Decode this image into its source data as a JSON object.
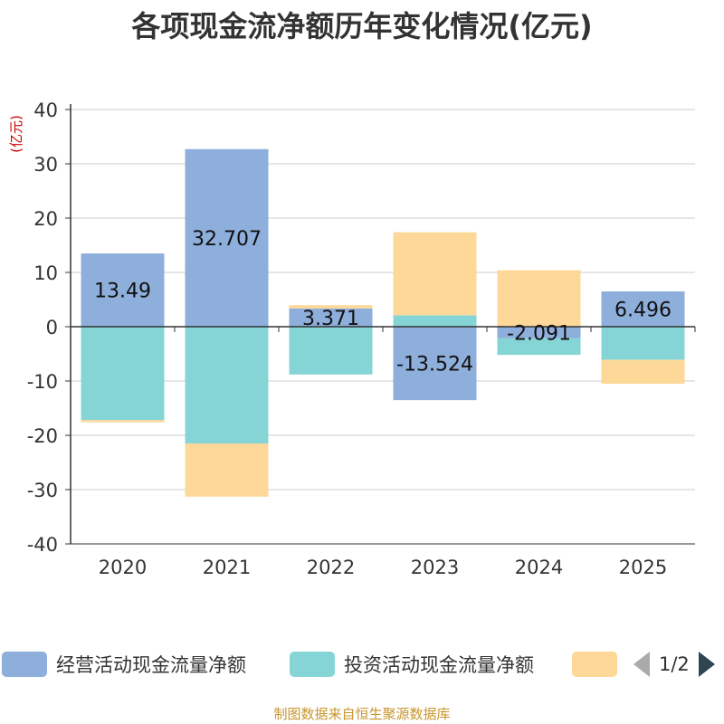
{
  "chart_data": {
    "type": "bar",
    "stacked": true,
    "title": "各项现金流净额历年变化情况(亿元)",
    "ylabel": "(亿元)",
    "xlabel": "",
    "ylim": [
      -40,
      40
    ],
    "yticks": [
      40,
      30,
      20,
      10,
      0,
      -10,
      -20,
      -30,
      -40
    ],
    "categories": [
      "2020",
      "2021",
      "2022",
      "2023",
      "2024",
      "2025"
    ],
    "series": [
      {
        "name": "经营活动现金流量净额",
        "color": "#8eaedb",
        "values": [
          13.49,
          32.707,
          3.371,
          -13.524,
          -2.091,
          6.496
        ],
        "show_labels": true
      },
      {
        "name": "投资活动现金流量净额",
        "color": "#86d5d6",
        "values": [
          -17.2,
          -21.5,
          -8.8,
          2.1,
          -3.1,
          -6.1
        ],
        "show_labels": false
      },
      {
        "name": "",
        "color": "#fdd898",
        "values": [
          -0.4,
          -9.8,
          0.6,
          15.3,
          10.4,
          -4.4
        ],
        "show_labels": false
      }
    ],
    "grid": true,
    "legend_position": "bottom"
  },
  "legend": {
    "pager_text": "1/2"
  },
  "source_note": "制图数据来自恒生聚源数据库"
}
